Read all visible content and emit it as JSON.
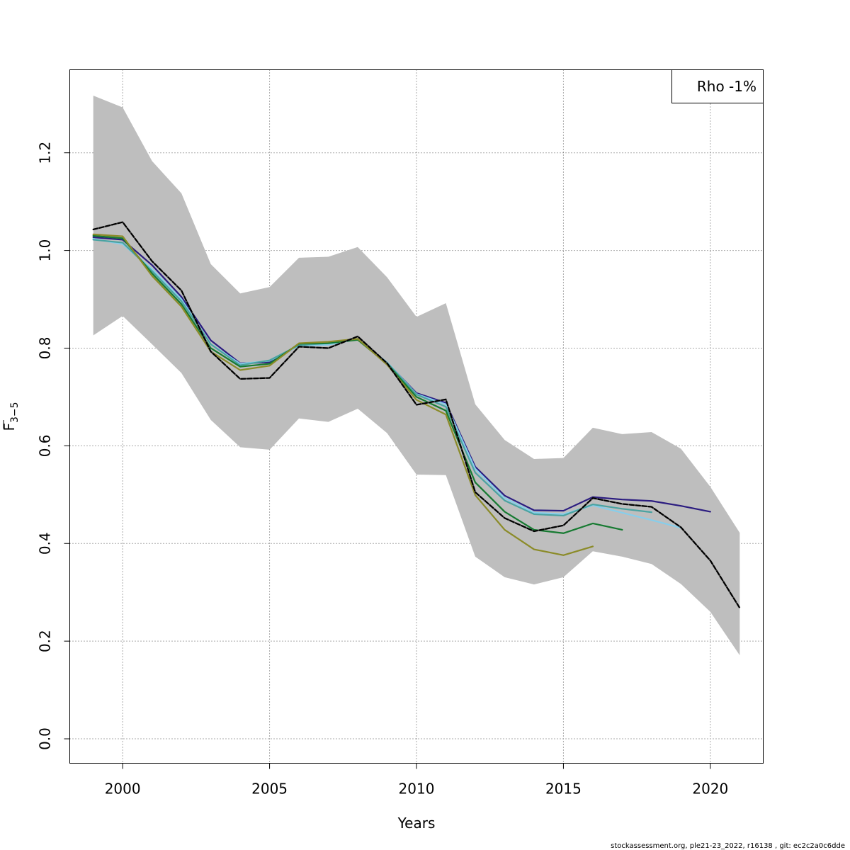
{
  "chart_data": {
    "type": "line",
    "xlabel": "Years",
    "ylabel_main": "F",
    "ylabel_sub": "3−5",
    "xlim": [
      1998.2,
      2021.8
    ],
    "ylim": [
      -0.05,
      1.37
    ],
    "xticks": [
      "2000",
      "2005",
      "2010",
      "2015",
      "2020"
    ],
    "xtick_values": [
      2000,
      2005,
      2010,
      2015,
      2020
    ],
    "yticks": [
      "0.0",
      "0.2",
      "0.4",
      "0.6",
      "0.8",
      "1.0",
      "1.2"
    ],
    "ytick_values": [
      0.0,
      0.2,
      0.4,
      0.6,
      0.8,
      1.0,
      1.2
    ],
    "grid": true,
    "legend": {
      "position": "top-right",
      "text": "Rho -1%"
    },
    "band": {
      "x": [
        1999,
        2000,
        2001,
        2002,
        2003,
        2004,
        2005,
        2006,
        2007,
        2008,
        2009,
        2010,
        2011,
        2012,
        2013,
        2014,
        2015,
        2016,
        2017,
        2018,
        2019,
        2020,
        2021
      ],
      "upper": [
        1.317,
        1.293,
        1.183,
        1.117,
        0.972,
        0.912,
        0.925,
        0.985,
        0.987,
        1.007,
        0.945,
        0.864,
        0.892,
        0.685,
        0.612,
        0.573,
        0.575,
        0.637,
        0.624,
        0.628,
        0.594,
        0.516,
        0.422
      ],
      "lower": [
        0.826,
        0.866,
        0.808,
        0.749,
        0.653,
        0.597,
        0.592,
        0.656,
        0.649,
        0.676,
        0.626,
        0.541,
        0.54,
        0.373,
        0.331,
        0.316,
        0.331,
        0.384,
        0.373,
        0.358,
        0.317,
        0.26,
        0.171
      ],
      "color": "#bebebe"
    },
    "series": [
      {
        "color": "#2b1c80",
        "x": [
          1999,
          2000,
          2001,
          2002,
          2003,
          2004,
          2005,
          2006,
          2007,
          2008,
          2009,
          2010,
          2011,
          2012,
          2013,
          2014,
          2015,
          2016,
          2017,
          2018,
          2019,
          2020
        ],
        "values": [
          1.027,
          1.022,
          0.97,
          0.905,
          0.816,
          0.769,
          0.771,
          0.806,
          0.808,
          0.818,
          0.77,
          0.708,
          0.688,
          0.557,
          0.498,
          0.468,
          0.467,
          0.495,
          0.49,
          0.487,
          0.477,
          0.465
        ]
      },
      {
        "color": "#87ceeb",
        "x": [
          1999,
          2000,
          2001,
          2002,
          2003,
          2004,
          2005,
          2006,
          2007,
          2008,
          2009,
          2010,
          2011,
          2012,
          2013,
          2014,
          2015,
          2016,
          2017,
          2018,
          2019
        ],
        "values": [
          1.024,
          1.013,
          0.962,
          0.9,
          0.808,
          0.768,
          0.774,
          0.805,
          0.807,
          0.818,
          0.771,
          0.706,
          0.685,
          0.553,
          0.493,
          0.463,
          0.46,
          0.478,
          0.463,
          0.448,
          0.432
        ]
      },
      {
        "color": "#4aa3a1",
        "x": [
          1999,
          2000,
          2001,
          2002,
          2003,
          2004,
          2005,
          2006,
          2007,
          2008,
          2009,
          2010,
          2011,
          2012,
          2013,
          2014,
          2015,
          2016,
          2017,
          2018
        ],
        "values": [
          1.022,
          1.016,
          0.958,
          0.896,
          0.808,
          0.765,
          0.775,
          0.806,
          0.81,
          0.818,
          0.77,
          0.705,
          0.68,
          0.545,
          0.488,
          0.46,
          0.457,
          0.48,
          0.471,
          0.464
        ]
      },
      {
        "color": "#167a31",
        "x": [
          1999,
          2000,
          2001,
          2002,
          2003,
          2004,
          2005,
          2006,
          2007,
          2008,
          2009,
          2010,
          2011,
          2012,
          2013,
          2014,
          2015,
          2016,
          2017
        ],
        "values": [
          1.03,
          1.025,
          0.953,
          0.89,
          0.8,
          0.762,
          0.768,
          0.809,
          0.81,
          0.817,
          0.768,
          0.7,
          0.672,
          0.525,
          0.465,
          0.428,
          0.421,
          0.441,
          0.428
        ]
      },
      {
        "color": "#8b8b28",
        "x": [
          1999,
          2000,
          2001,
          2002,
          2003,
          2004,
          2005,
          2006,
          2007,
          2008,
          2009,
          2010,
          2011,
          2012,
          2013,
          2014,
          2015,
          2016
        ],
        "values": [
          1.033,
          1.029,
          0.948,
          0.885,
          0.793,
          0.755,
          0.764,
          0.81,
          0.813,
          0.819,
          0.766,
          0.694,
          0.664,
          0.499,
          0.428,
          0.388,
          0.376,
          0.394
        ]
      },
      {
        "color": "#000000",
        "dashed": true,
        "x": [
          1999,
          2000,
          2001,
          2002,
          2003,
          2004,
          2005,
          2006,
          2007,
          2008,
          2009,
          2010,
          2011,
          2012,
          2013,
          2014,
          2015,
          2016,
          2017,
          2018,
          2019,
          2020,
          2021
        ],
        "values": [
          1.043,
          1.058,
          0.978,
          0.918,
          0.793,
          0.737,
          0.739,
          0.803,
          0.8,
          0.824,
          0.769,
          0.684,
          0.695,
          0.505,
          0.452,
          0.425,
          0.437,
          0.493,
          0.481,
          0.475,
          0.433,
          0.365,
          0.268
        ]
      }
    ]
  },
  "footer": "stockassessment.org, ple21-23_2022, r16138 , git: ec2c2a0c6dde"
}
